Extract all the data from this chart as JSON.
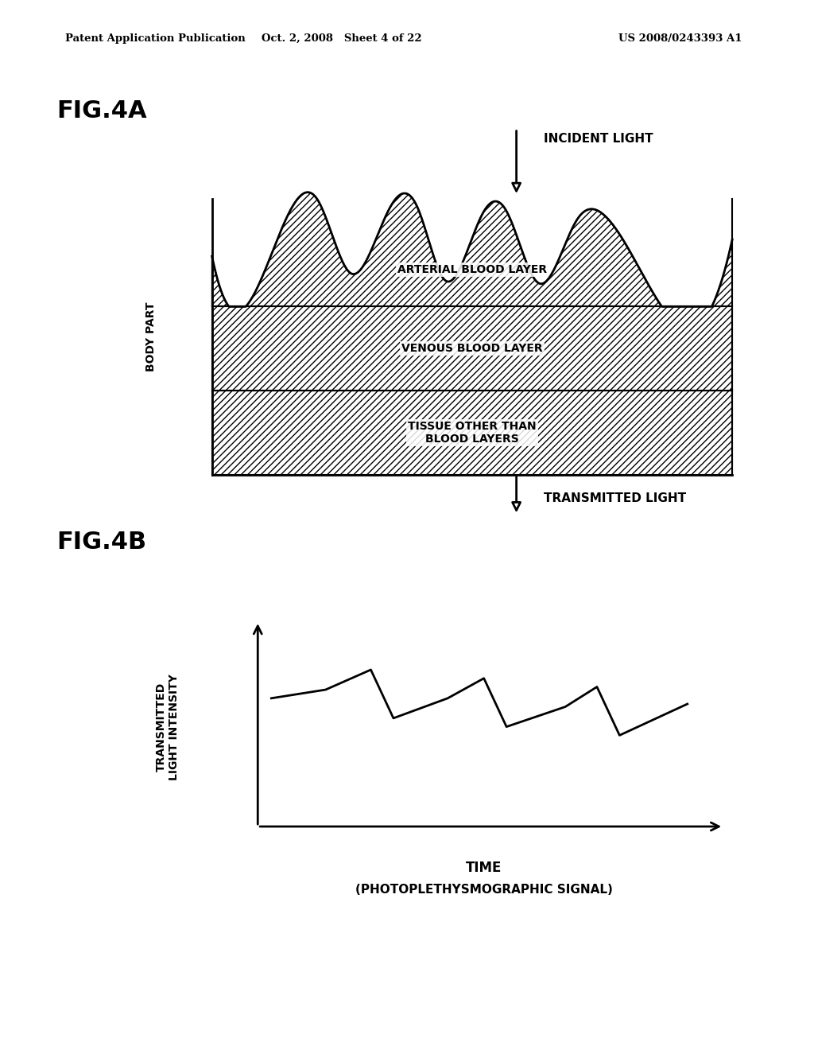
{
  "header_left": "Patent Application Publication",
  "header_mid": "Oct. 2, 2008   Sheet 4 of 22",
  "header_right": "US 2008/0243393 A1",
  "fig4a_label": "FIG.4A",
  "fig4b_label": "FIG.4B",
  "incident_light_label": "INCIDENT LIGHT",
  "transmitted_light_label": "TRANSMITTED LIGHT",
  "arterial_label": "ARTERIAL BLOOD LAYER",
  "venous_label": "VENOUS BLOOD LAYER",
  "tissue_label": "TISSUE OTHER THAN\nBLOOD LAYERS",
  "body_part_label": "BODY PART",
  "ylabel_4b": "TRANSMITTED\nLIGHT INTENSITY",
  "xlabel_4b": "TIME",
  "xlabel_sub_4b": "(PHOTOPLETHYSMOGRAPHIC SIGNAL)",
  "bg_color": "#ffffff",
  "line_color": "#000000"
}
